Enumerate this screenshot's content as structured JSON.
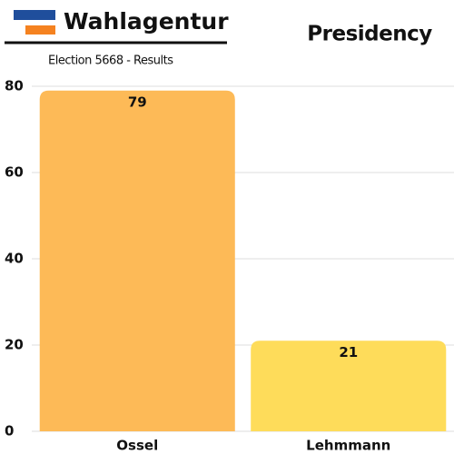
{
  "header": {
    "brand": "Wahlagentur"
  },
  "chart_data": {
    "type": "bar",
    "title": "Presidency",
    "subtitle": "Election 5668 - Results",
    "categories": [
      "Ossel",
      "Lehmmann"
    ],
    "values": [
      79,
      21
    ],
    "colors": [
      "#fdba57",
      "#fedc5a"
    ],
    "ylim": [
      0,
      80
    ],
    "yticks": [
      0,
      20,
      40,
      60,
      80
    ],
    "grid": true
  }
}
